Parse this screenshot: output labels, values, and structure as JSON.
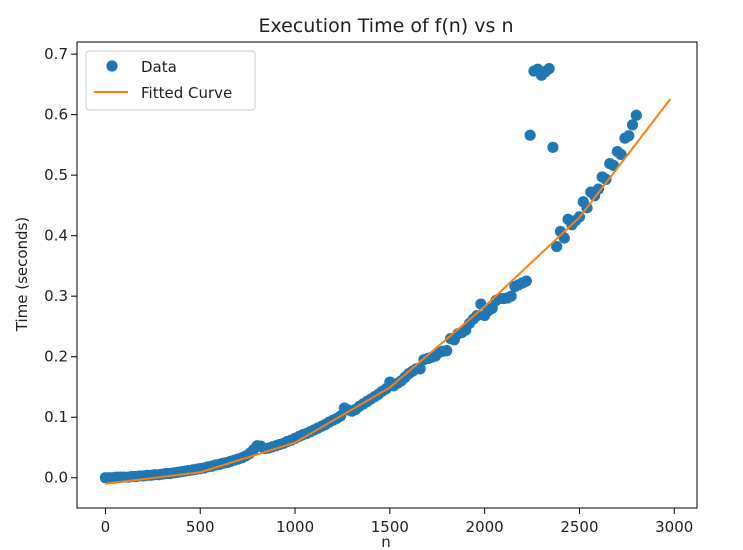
{
  "chart_data": {
    "type": "scatter",
    "title": "Execution Time of f(n) vs n",
    "xlabel": "n",
    "ylabel": "Time (seconds)",
    "xlim": [
      -150,
      3120
    ],
    "ylim": [
      -0.05,
      0.72
    ],
    "xticks": [
      0,
      500,
      1000,
      1500,
      2000,
      2500,
      3000
    ],
    "xtick_labels": [
      "0",
      "500",
      "1000",
      "1500",
      "2000",
      "2500",
      "3000"
    ],
    "yticks": [
      0.0,
      0.1,
      0.2,
      0.3,
      0.4,
      0.5,
      0.6,
      0.7
    ],
    "ytick_labels": [
      "0.0",
      "0.1",
      "0.2",
      "0.3",
      "0.4",
      "0.5",
      "0.6",
      "0.7"
    ],
    "grid": false,
    "legend": {
      "placement": "top-left",
      "entries": [
        "Data",
        "Fitted Curve"
      ]
    },
    "series": [
      {
        "name": "Data",
        "kind": "scatter",
        "color": "#1f77b4",
        "points": [
          [
            0,
            0.0
          ],
          [
            20,
            0.0
          ],
          [
            40,
            0.0
          ],
          [
            60,
            0.001
          ],
          [
            80,
            0.001
          ],
          [
            100,
            0.001
          ],
          [
            120,
            0.001
          ],
          [
            140,
            0.002
          ],
          [
            160,
            0.002
          ],
          [
            180,
            0.003
          ],
          [
            200,
            0.003
          ],
          [
            220,
            0.004
          ],
          [
            240,
            0.004
          ],
          [
            260,
            0.005
          ],
          [
            280,
            0.005
          ],
          [
            300,
            0.006
          ],
          [
            320,
            0.007
          ],
          [
            340,
            0.007
          ],
          [
            360,
            0.008
          ],
          [
            380,
            0.009
          ],
          [
            400,
            0.01
          ],
          [
            420,
            0.011
          ],
          [
            440,
            0.012
          ],
          [
            460,
            0.013
          ],
          [
            480,
            0.014
          ],
          [
            500,
            0.015
          ],
          [
            520,
            0.016
          ],
          [
            540,
            0.018
          ],
          [
            560,
            0.019
          ],
          [
            580,
            0.021
          ],
          [
            600,
            0.022
          ],
          [
            620,
            0.024
          ],
          [
            640,
            0.025
          ],
          [
            660,
            0.027
          ],
          [
            680,
            0.029
          ],
          [
            700,
            0.031
          ],
          [
            720,
            0.033
          ],
          [
            740,
            0.036
          ],
          [
            760,
            0.04
          ],
          [
            780,
            0.046
          ],
          [
            800,
            0.053
          ],
          [
            820,
            0.052
          ],
          [
            840,
            0.048
          ],
          [
            860,
            0.049
          ],
          [
            880,
            0.051
          ],
          [
            900,
            0.053
          ],
          [
            920,
            0.055
          ],
          [
            940,
            0.057
          ],
          [
            960,
            0.06
          ],
          [
            980,
            0.062
          ],
          [
            1000,
            0.065
          ],
          [
            1020,
            0.068
          ],
          [
            1040,
            0.071
          ],
          [
            1060,
            0.073
          ],
          [
            1080,
            0.076
          ],
          [
            1100,
            0.079
          ],
          [
            1120,
            0.082
          ],
          [
            1140,
            0.085
          ],
          [
            1160,
            0.088
          ],
          [
            1180,
            0.092
          ],
          [
            1200,
            0.095
          ],
          [
            1220,
            0.098
          ],
          [
            1240,
            0.102
          ],
          [
            1260,
            0.115
          ],
          [
            1280,
            0.112
          ],
          [
            1300,
            0.11
          ],
          [
            1320,
            0.113
          ],
          [
            1340,
            0.118
          ],
          [
            1360,
            0.122
          ],
          [
            1380,
            0.126
          ],
          [
            1400,
            0.13
          ],
          [
            1420,
            0.134
          ],
          [
            1440,
            0.138
          ],
          [
            1460,
            0.143
          ],
          [
            1480,
            0.147
          ],
          [
            1500,
            0.158
          ],
          [
            1520,
            0.152
          ],
          [
            1540,
            0.156
          ],
          [
            1560,
            0.16
          ],
          [
            1580,
            0.166
          ],
          [
            1600,
            0.172
          ],
          [
            1620,
            0.176
          ],
          [
            1640,
            0.18
          ],
          [
            1660,
            0.18
          ],
          [
            1680,
            0.195
          ],
          [
            1700,
            0.197
          ],
          [
            1720,
            0.199
          ],
          [
            1740,
            0.201
          ],
          [
            1760,
            0.207
          ],
          [
            1780,
            0.209
          ],
          [
            1800,
            0.21
          ],
          [
            1820,
            0.23
          ],
          [
            1840,
            0.228
          ],
          [
            1860,
            0.238
          ],
          [
            1880,
            0.24
          ],
          [
            1900,
            0.244
          ],
          [
            1920,
            0.255
          ],
          [
            1940,
            0.262
          ],
          [
            1960,
            0.268
          ],
          [
            1980,
            0.287
          ],
          [
            2000,
            0.268
          ],
          [
            2020,
            0.276
          ],
          [
            2040,
            0.28
          ],
          [
            2060,
            0.293
          ],
          [
            2080,
            0.296
          ],
          [
            2100,
            0.296
          ],
          [
            2120,
            0.297
          ],
          [
            2140,
            0.3
          ],
          [
            2160,
            0.316
          ],
          [
            2180,
            0.319
          ],
          [
            2200,
            0.322
          ],
          [
            2220,
            0.325
          ],
          [
            2240,
            0.566
          ],
          [
            2260,
            0.672
          ],
          [
            2280,
            0.675
          ],
          [
            2300,
            0.665
          ],
          [
            2320,
            0.671
          ],
          [
            2340,
            0.676
          ],
          [
            2360,
            0.546
          ],
          [
            2380,
            0.382
          ],
          [
            2400,
            0.407
          ],
          [
            2420,
            0.396
          ],
          [
            2440,
            0.427
          ],
          [
            2460,
            0.418
          ],
          [
            2480,
            0.425
          ],
          [
            2500,
            0.431
          ],
          [
            2520,
            0.456
          ],
          [
            2540,
            0.446
          ],
          [
            2560,
            0.472
          ],
          [
            2580,
            0.466
          ],
          [
            2600,
            0.477
          ],
          [
            2620,
            0.497
          ],
          [
            2640,
            0.493
          ],
          [
            2660,
            0.519
          ],
          [
            2680,
            0.516
          ],
          [
            2700,
            0.539
          ],
          [
            2720,
            0.534
          ],
          [
            2740,
            0.561
          ],
          [
            2760,
            0.565
          ],
          [
            2780,
            0.583
          ],
          [
            2800,
            0.599
          ]
        ]
      },
      {
        "name": "Fitted Curve",
        "kind": "line",
        "color": "#ff7f0e",
        "points": [
          [
            0,
            -0.01
          ],
          [
            500,
            0.009
          ],
          [
            1000,
            0.058
          ],
          [
            1500,
            0.149
          ],
          [
            2000,
            0.283
          ],
          [
            2500,
            0.43
          ],
          [
            2980,
            0.626
          ]
        ]
      }
    ]
  }
}
